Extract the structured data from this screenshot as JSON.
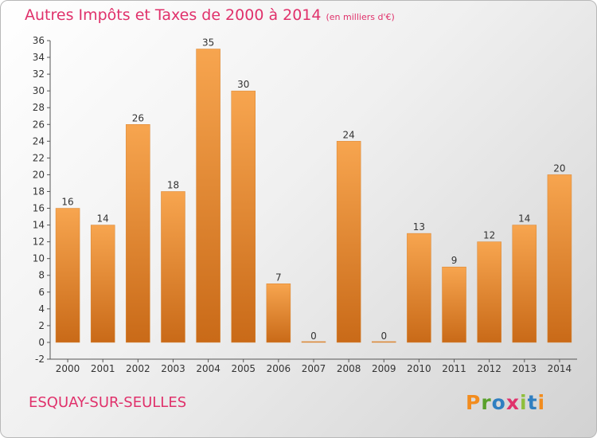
{
  "title": "Autres Impôts et Taxes de 2000 à 2014",
  "unit": "(en milliers d'€)",
  "commune": "ESQUAY-SUR-SEULLES",
  "logo": {
    "letters": [
      "P",
      "r",
      "o",
      "x",
      "i",
      "t",
      "i"
    ],
    "colors": [
      "#f28c1e",
      "#5aa02c",
      "#2f7fc1",
      "#e0316b",
      "#8fbf3c",
      "#2f7fc1",
      "#f28c1e"
    ]
  },
  "colors": {
    "accent": "#e0316b",
    "bar_light": "#f7a54f",
    "bar_dark": "#c96a18",
    "axis": "#555555"
  },
  "chart_data": {
    "type": "bar",
    "title": "Autres Impôts et Taxes de 2000 à 2014",
    "categories": [
      "2000",
      "2001",
      "2002",
      "2003",
      "2004",
      "2005",
      "2006",
      "2007",
      "2008",
      "2009",
      "2010",
      "2011",
      "2012",
      "2013",
      "2014"
    ],
    "values": [
      16,
      14,
      26,
      18,
      35,
      30,
      7,
      0,
      24,
      0,
      13,
      9,
      12,
      14,
      20
    ],
    "ylim": [
      -2,
      36
    ],
    "yticks": [
      -2,
      0,
      2,
      4,
      6,
      8,
      10,
      12,
      14,
      16,
      18,
      20,
      22,
      24,
      26,
      28,
      30,
      32,
      34,
      36
    ],
    "xlabel": "",
    "ylabel": "",
    "grid": false,
    "legend": "none"
  }
}
